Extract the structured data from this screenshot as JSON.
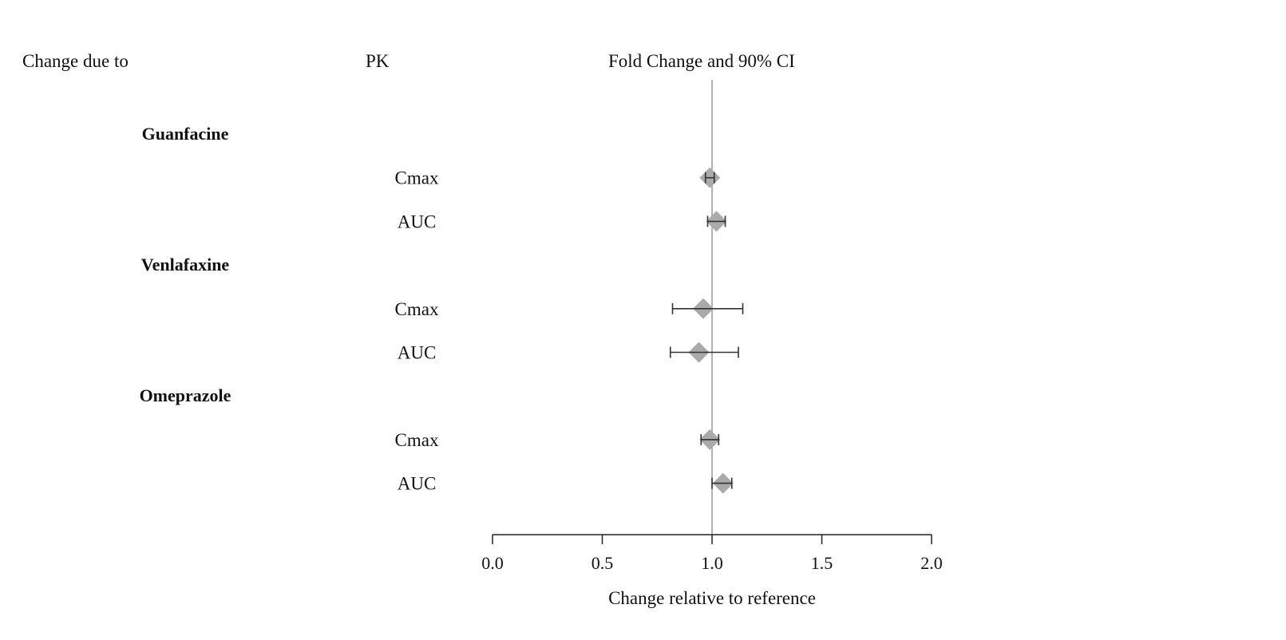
{
  "headers": {
    "change_due_to": "Change due to",
    "pk": "PK",
    "fold_change": "Fold Change and 90% CI"
  },
  "chart_data": {
    "type": "forest",
    "xlabel": "Change relative to reference",
    "xlim": [
      0.0,
      2.0
    ],
    "xticks": [
      "0.0",
      "0.5",
      "1.0",
      "1.5",
      "2.0"
    ],
    "reference_line": 1.0,
    "groups": [
      {
        "drug": "Guanfacine",
        "rows": [
          {
            "pk": "Cmax",
            "estimate": 0.99,
            "lower": 0.97,
            "upper": 1.01
          },
          {
            "pk": "AUC",
            "estimate": 1.02,
            "lower": 0.98,
            "upper": 1.06
          }
        ]
      },
      {
        "drug": "Venlafaxine",
        "rows": [
          {
            "pk": "Cmax",
            "estimate": 0.96,
            "lower": 0.82,
            "upper": 1.14
          },
          {
            "pk": "AUC",
            "estimate": 0.94,
            "lower": 0.81,
            "upper": 1.12
          }
        ]
      },
      {
        "drug": "Omeprazole",
        "rows": [
          {
            "pk": "Cmax",
            "estimate": 0.99,
            "lower": 0.95,
            "upper": 1.03
          },
          {
            "pk": "AUC",
            "estimate": 1.05,
            "lower": 1.0,
            "upper": 1.09
          }
        ]
      }
    ],
    "colors": {
      "marker": "#aaaaaa",
      "ci_line": "#333333",
      "reference_line": "#999999",
      "axis": "#222222"
    }
  }
}
